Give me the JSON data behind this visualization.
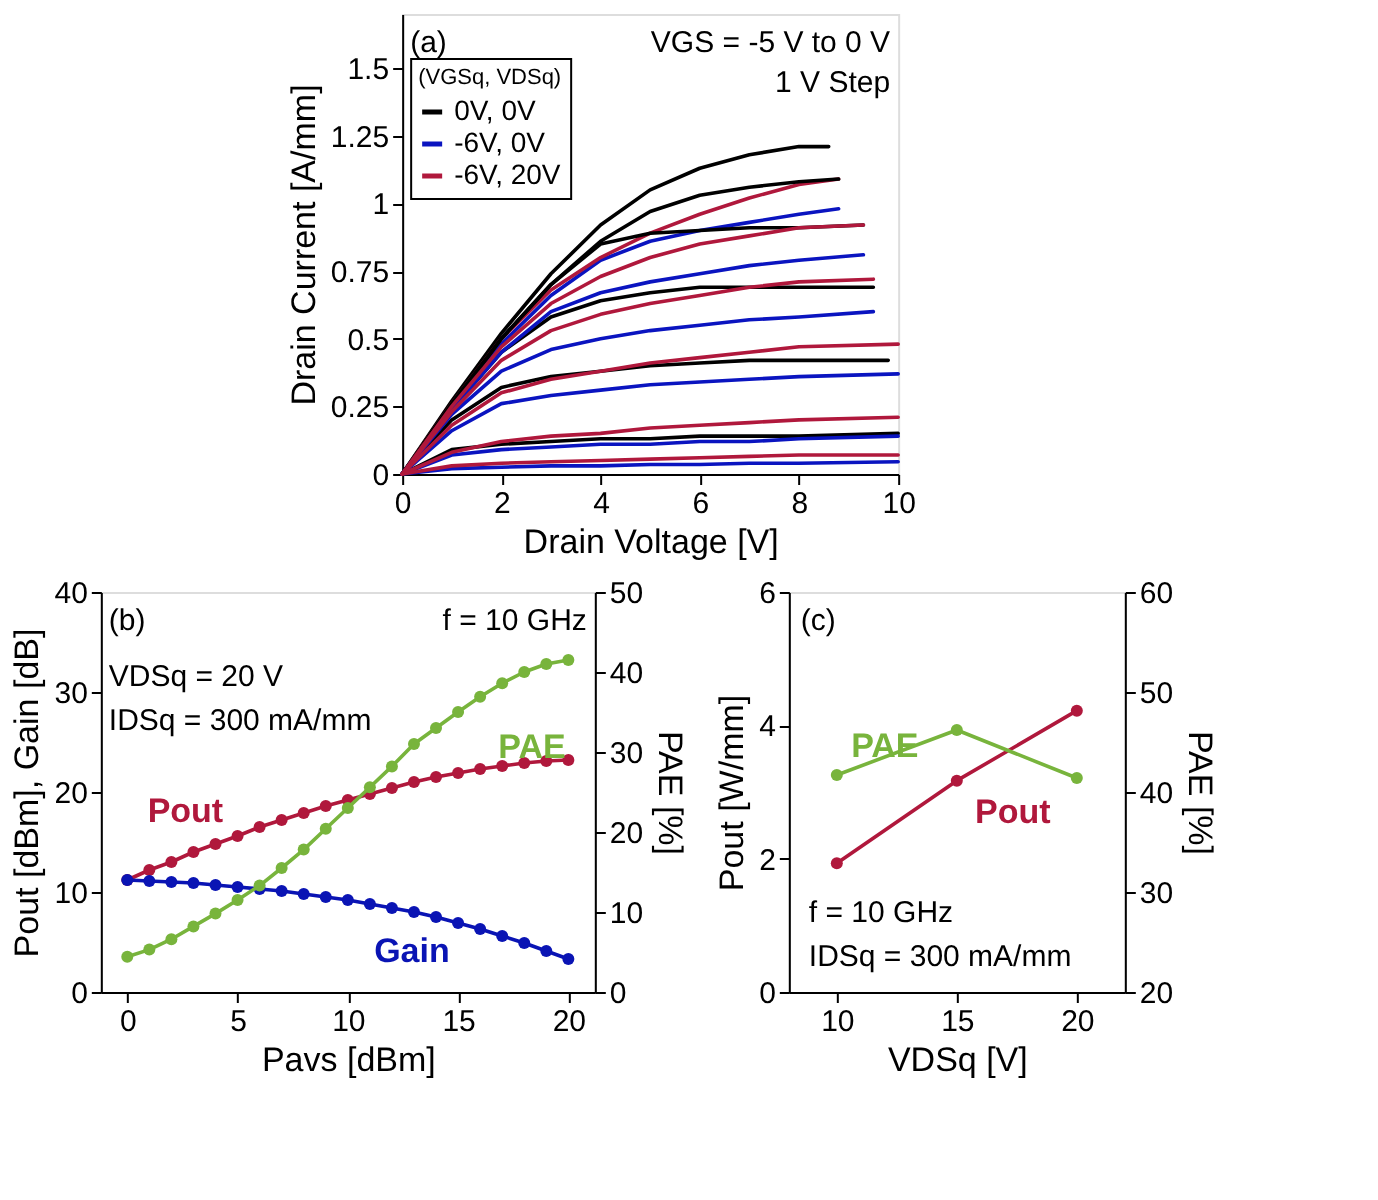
{
  "chart_data": [
    {
      "type": "line",
      "xlabel": "Drain Voltage [V]",
      "ylabel": "Drain Current [A/mm]",
      "xlim": [
        0,
        10
      ],
      "xticks": [
        0,
        2,
        4,
        6,
        8,
        10
      ],
      "ylim": [
        0,
        1.7
      ],
      "yticks": [
        0,
        0.25,
        0.5,
        0.75,
        1,
        1.25,
        1.5
      ],
      "grid": false,
      "marker": "none",
      "line_style": "solid",
      "legend": "top left",
      "legend_title": "(VGSq, VDSq)",
      "annotations": [
        "(a)",
        "VGS = -5 V to 0 V",
        "1 V Step"
      ],
      "series": [
        {
          "name": "0V, 0V",
          "color": "#000000",
          "x": [
            0,
            1,
            2,
            3,
            4,
            5,
            6,
            7,
            8,
            8.6
          ],
          "values": [
            0,
            0.27,
            0.52,
            0.74,
            0.92,
            1.05,
            1.13,
            1.18,
            1.21,
            1.21
          ]
        },
        {
          "name": "-6V, 0V",
          "color": "#0a14c0",
          "x": [
            0,
            1,
            2,
            3,
            4,
            5,
            6,
            7,
            8,
            8.8
          ],
          "values": [
            0,
            0.25,
            0.48,
            0.66,
            0.79,
            0.86,
            0.9,
            0.93,
            0.96,
            0.98
          ]
        },
        {
          "name": "-6V, 20V",
          "color": "#b0183c",
          "x": [
            0,
            1,
            2,
            3,
            4,
            5,
            6,
            7,
            8,
            8.8
          ],
          "values": [
            0,
            0.26,
            0.5,
            0.68,
            0.8,
            0.89,
            0.96,
            1.02,
            1.07,
            1.09
          ]
        },
        {
          "color": "#000000",
          "x": [
            0,
            1,
            2,
            3,
            4,
            5,
            6,
            7,
            8,
            8.8
          ],
          "values": [
            0,
            0.26,
            0.5,
            0.7,
            0.86,
            0.97,
            1.03,
            1.06,
            1.08,
            1.09
          ]
        },
        {
          "color": "#000000",
          "x": [
            0,
            1,
            2,
            3,
            4,
            5,
            6,
            7,
            8,
            9.3
          ],
          "values": [
            0,
            0.25,
            0.5,
            0.7,
            0.85,
            0.89,
            0.9,
            0.91,
            0.91,
            0.92
          ]
        },
        {
          "color": "#000000",
          "x": [
            0,
            1,
            2,
            3,
            4,
            5,
            6,
            7,
            8,
            9.5
          ],
          "values": [
            0,
            0.24,
            0.45,
            0.58,
            0.64,
            0.67,
            0.69,
            0.69,
            0.69,
            0.69
          ]
        },
        {
          "color": "#000000",
          "x": [
            0,
            1,
            2,
            3,
            4,
            5,
            6,
            7,
            8,
            9.8
          ],
          "values": [
            0,
            0.2,
            0.32,
            0.36,
            0.38,
            0.4,
            0.41,
            0.42,
            0.42,
            0.42
          ]
        },
        {
          "color": "#000000",
          "x": [
            0,
            1,
            2,
            3,
            4,
            5,
            6,
            7,
            8,
            10
          ],
          "values": [
            0,
            0.09,
            0.11,
            0.12,
            0.13,
            0.13,
            0.14,
            0.14,
            0.14,
            0.15
          ]
        },
        {
          "color": "#0a14c0",
          "x": [
            0,
            1,
            2,
            3,
            4,
            5,
            6,
            7,
            8,
            9.3
          ],
          "values": [
            0,
            0.24,
            0.45,
            0.6,
            0.67,
            0.71,
            0.74,
            0.77,
            0.79,
            0.81
          ]
        },
        {
          "color": "#0a14c0",
          "x": [
            0,
            1,
            2,
            3,
            4,
            5,
            6,
            7,
            8,
            9.5
          ],
          "values": [
            0,
            0.22,
            0.38,
            0.46,
            0.5,
            0.53,
            0.55,
            0.57,
            0.58,
            0.6
          ]
        },
        {
          "color": "#0a14c0",
          "x": [
            0,
            1,
            2,
            3,
            4,
            5,
            6,
            7,
            8,
            10
          ],
          "values": [
            0,
            0.16,
            0.26,
            0.29,
            0.31,
            0.33,
            0.34,
            0.35,
            0.36,
            0.37
          ]
        },
        {
          "color": "#0a14c0",
          "x": [
            0,
            1,
            2,
            3,
            4,
            5,
            6,
            7,
            8,
            10
          ],
          "values": [
            0,
            0.07,
            0.09,
            0.1,
            0.11,
            0.11,
            0.12,
            0.12,
            0.13,
            0.14
          ]
        },
        {
          "color": "#0a14c0",
          "x": [
            0,
            1,
            2,
            3,
            4,
            5,
            6,
            7,
            8,
            10
          ],
          "values": [
            0,
            0.02,
            0.025,
            0.03,
            0.03,
            0.035,
            0.035,
            0.04,
            0.04,
            0.045
          ]
        },
        {
          "color": "#b0183c",
          "x": [
            0,
            1,
            2,
            3,
            4,
            5,
            6,
            7,
            8,
            9.3
          ],
          "values": [
            0,
            0.25,
            0.47,
            0.63,
            0.73,
            0.8,
            0.85,
            0.88,
            0.91,
            0.92
          ]
        },
        {
          "color": "#b0183c",
          "x": [
            0,
            1,
            2,
            3,
            4,
            5,
            6,
            7,
            8,
            9.5
          ],
          "values": [
            0,
            0.23,
            0.42,
            0.53,
            0.59,
            0.63,
            0.66,
            0.69,
            0.71,
            0.72
          ]
        },
        {
          "color": "#b0183c",
          "x": [
            0,
            1,
            2,
            3,
            4,
            5,
            6,
            7,
            8,
            10
          ],
          "values": [
            0,
            0.18,
            0.3,
            0.35,
            0.38,
            0.41,
            0.43,
            0.45,
            0.47,
            0.48
          ]
        },
        {
          "color": "#b0183c",
          "x": [
            0,
            1,
            2,
            3,
            4,
            5,
            6,
            7,
            8,
            10
          ],
          "values": [
            0,
            0.08,
            0.12,
            0.14,
            0.15,
            0.17,
            0.18,
            0.19,
            0.2,
            0.21
          ]
        },
        {
          "color": "#b0183c",
          "x": [
            0,
            1,
            2,
            3,
            4,
            5,
            6,
            7,
            8,
            10
          ],
          "values": [
            0,
            0.03,
            0.04,
            0.045,
            0.05,
            0.055,
            0.06,
            0.065,
            0.07,
            0.07
          ]
        }
      ]
    },
    {
      "type": "line",
      "xlabel": "Pavs [dBm]",
      "ylabel": "Pout [dBm], Gain [dB]",
      "y2label": "PAE [%]",
      "xlim": [
        -1.2,
        21.2
      ],
      "xticks": [
        0,
        5,
        10,
        15,
        20
      ],
      "ylim": [
        0,
        40
      ],
      "yticks": [
        0,
        10,
        20,
        30,
        40
      ],
      "y2lim": [
        0,
        50
      ],
      "y2ticks": [
        0,
        10,
        20,
        30,
        40,
        50
      ],
      "grid": false,
      "legend": false,
      "marker": "circle",
      "line_style": "solid",
      "annotations": [
        "(b)",
        "f = 10 GHz",
        "VDSq = 20 V",
        "IDSq = 300 mA/mm"
      ],
      "x": [
        0,
        1,
        2,
        3,
        4,
        5,
        6,
        7,
        8,
        9,
        10,
        11,
        12,
        13,
        14,
        15,
        16,
        17,
        18,
        19,
        20
      ],
      "series": [
        {
          "name": "Pout",
          "color": "#b0183c",
          "values": [
            11.2,
            12.2,
            13.0,
            14.0,
            14.8,
            15.6,
            16.5,
            17.2,
            17.9,
            18.6,
            19.2,
            19.8,
            20.4,
            21.0,
            21.5,
            21.9,
            22.3,
            22.6,
            22.9,
            23.1,
            23.2
          ]
        },
        {
          "name": "Gain",
          "color": "#0a14b4",
          "values": [
            11.2,
            11.1,
            11.0,
            10.9,
            10.7,
            10.5,
            10.3,
            10.1,
            9.8,
            9.5,
            9.2,
            8.8,
            8.4,
            8.0,
            7.5,
            6.9,
            6.3,
            5.6,
            4.9,
            4.1,
            3.3
          ]
        },
        {
          "name": "PAE",
          "color": "#78b43c",
          "axis": "y2",
          "values": [
            4.4,
            5.3,
            6.6,
            8.2,
            9.8,
            11.5,
            13.3,
            15.5,
            17.8,
            20.4,
            23.0,
            25.6,
            28.2,
            31.0,
            33.0,
            35.0,
            36.9,
            38.6,
            40.0,
            41.0,
            41.5
          ]
        }
      ]
    },
    {
      "type": "line",
      "xlabel": "VDSq [V]",
      "ylabel": "Pout [W/mm]",
      "y2label": "PAE [%]",
      "xlim": [
        8,
        22
      ],
      "xticks": [
        10,
        15,
        20
      ],
      "ylim": [
        0,
        6
      ],
      "yticks": [
        0,
        2,
        4,
        6
      ],
      "y2lim": [
        20,
        60
      ],
      "y2ticks": [
        20,
        30,
        40,
        50,
        60
      ],
      "grid": false,
      "legend": false,
      "marker": "circle",
      "line_style": "solid",
      "annotations": [
        "(c)",
        "f = 10 GHz",
        "IDSq = 300 mA/mm"
      ],
      "x": [
        10,
        15,
        20
      ],
      "series": [
        {
          "name": "Pout",
          "color": "#b0183c",
          "values": [
            1.93,
            3.17,
            4.22
          ]
        },
        {
          "name": "PAE",
          "color": "#78b43c",
          "axis": "y2",
          "values": [
            41.7,
            46.2,
            41.4
          ]
        }
      ]
    }
  ]
}
